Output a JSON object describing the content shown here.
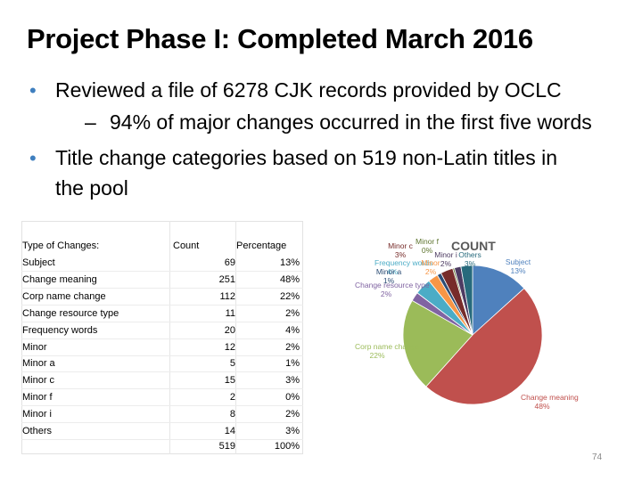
{
  "slide": {
    "title": "Project Phase I: Completed March 2016",
    "bullets": [
      {
        "level": 1,
        "text": "Reviewed a file of 6278 CJK records provided by OCLC"
      },
      {
        "level": 2,
        "text": "94% of major changes occurred in the first five words"
      },
      {
        "level": 1,
        "text": "Title change categories based on 519 non-Latin titles in"
      },
      {
        "level": 1,
        "text": "the pool"
      }
    ],
    "page_number": "74"
  },
  "table": {
    "headers": {
      "type": "Type of Changes:",
      "count": "Count",
      "percentage": "Percentage"
    },
    "rows": [
      {
        "type": "Subject",
        "count": "69",
        "percentage": "13%"
      },
      {
        "type": "Change meaning",
        "count": "251",
        "percentage": "48%"
      },
      {
        "type": "Corp name change",
        "count": "112",
        "percentage": "22%"
      },
      {
        "type": "Change resource type",
        "count": "11",
        "percentage": "2%"
      },
      {
        "type": "Frequency words",
        "count": "20",
        "percentage": "4%"
      },
      {
        "type": "Minor",
        "count": "12",
        "percentage": "2%"
      },
      {
        "type": "Minor a",
        "count": "5",
        "percentage": "1%"
      },
      {
        "type": "Minor c",
        "count": "15",
        "percentage": "3%"
      },
      {
        "type": "Minor f",
        "count": "2",
        "percentage": "0%"
      },
      {
        "type": "Minor i",
        "count": "8",
        "percentage": "2%"
      },
      {
        "type": "Others",
        "count": "14",
        "percentage": "3%"
      }
    ],
    "total": {
      "type": "",
      "count": "519",
      "percentage": "100%"
    }
  },
  "chart_data": {
    "type": "pie",
    "title": "COUNT",
    "slices": [
      {
        "label": "Subject",
        "value": 69,
        "percent_label": "13%",
        "color": "#4f81bd"
      },
      {
        "label": "Change meaning",
        "value": 251,
        "percent_label": "48%",
        "color": "#c0504d"
      },
      {
        "label": "Corp name change",
        "value": 112,
        "percent_label": "22%",
        "color": "#9bbb59"
      },
      {
        "label": "Change resource type",
        "value": 11,
        "percent_label": "2%",
        "color": "#8064a2"
      },
      {
        "label": "Frequency words",
        "value": 20,
        "percent_label": "4%",
        "color": "#4bacc6"
      },
      {
        "label": "Minor",
        "value": 12,
        "percent_label": "2%",
        "color": "#f79646"
      },
      {
        "label": "Minor a",
        "value": 5,
        "percent_label": "1%",
        "color": "#2c4d75"
      },
      {
        "label": "Minor c",
        "value": 15,
        "percent_label": "3%",
        "color": "#772c2a"
      },
      {
        "label": "Minor f",
        "value": 2,
        "percent_label": "0%",
        "color": "#5f7530"
      },
      {
        "label": "Minor i",
        "value": 8,
        "percent_label": "2%",
        "color": "#4d3b62"
      },
      {
        "label": "Others",
        "value": 14,
        "percent_label": "3%",
        "color": "#276a7c"
      }
    ],
    "legend": "none",
    "data_labels": "category name and percentage"
  }
}
